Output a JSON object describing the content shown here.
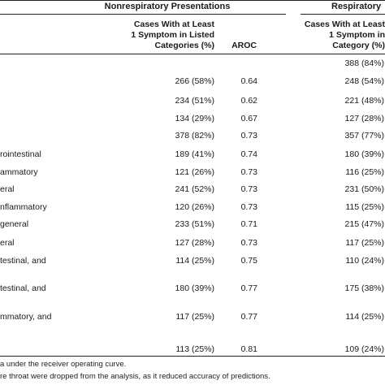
{
  "header": {
    "nonresp_title": "Nonrespiratory Presentations",
    "resp_title": "Respiratory",
    "col_cases_nonresp": [
      "Cases With at Least",
      "1 Symptom in Listed",
      "Categories (%)"
    ],
    "col_aroc": "AROC",
    "col_cases_resp": [
      "Cases With at Least",
      "1 Symptom in",
      "Category (%)"
    ]
  },
  "rows": [
    {
      "label": "",
      "nonresp": "",
      "aroc": "",
      "resp": "388 (84%)"
    },
    {
      "label": "",
      "nonresp": "266 (58%)",
      "aroc": "0.64",
      "resp": "248 (54%)"
    },
    {
      "label": "",
      "nonresp": "234 (51%)",
      "aroc": "0.62",
      "resp": "221 (48%)"
    },
    {
      "label": "",
      "nonresp": "134 (29%)",
      "aroc": "0.67",
      "resp": "127 (28%)"
    },
    {
      "label": "",
      "nonresp": "378 (82%)",
      "aroc": "0.73",
      "resp": "357 (77%)"
    },
    {
      "label": "rointestinal",
      "nonresp": "189 (41%)",
      "aroc": "0.74",
      "resp": "180 (39%)"
    },
    {
      "label": "ammatory",
      "nonresp": "121 (26%)",
      "aroc": "0.73",
      "resp": "116 (25%)"
    },
    {
      "label": "eral",
      "nonresp": "241 (52%)",
      "aroc": "0.73",
      "resp": "231 (50%)"
    },
    {
      "label": "nflammatory",
      "nonresp": "120 (26%)",
      "aroc": "0.73",
      "resp": "115 (25%)"
    },
    {
      "label": "general",
      "nonresp": "233 (51%)",
      "aroc": "0.71",
      "resp": "215 (47%)"
    },
    {
      "label": "eral",
      "nonresp": "127 (28%)",
      "aroc": "0.73",
      "resp": "117 (25%)"
    },
    {
      "label": "testinal, and",
      "nonresp": "114 (25%)",
      "aroc": "0.75",
      "resp": "110 (24%)"
    },
    {
      "label": "testinal, and",
      "nonresp": "180 (39%)",
      "aroc": "0.77",
      "resp": "175 (38%)"
    },
    {
      "label": "mmatory, and",
      "nonresp": "117 (25%)",
      "aroc": "0.77",
      "resp": "114 (25%)"
    },
    {
      "label": "",
      "nonresp": "113 (25%)",
      "aroc": "0.81",
      "resp": "109 (24%)"
    }
  ],
  "footnotes": [
    "a under the receiver operating curve.",
    "re throat were dropped from the analysis, as it reduced accuracy of predictions."
  ]
}
